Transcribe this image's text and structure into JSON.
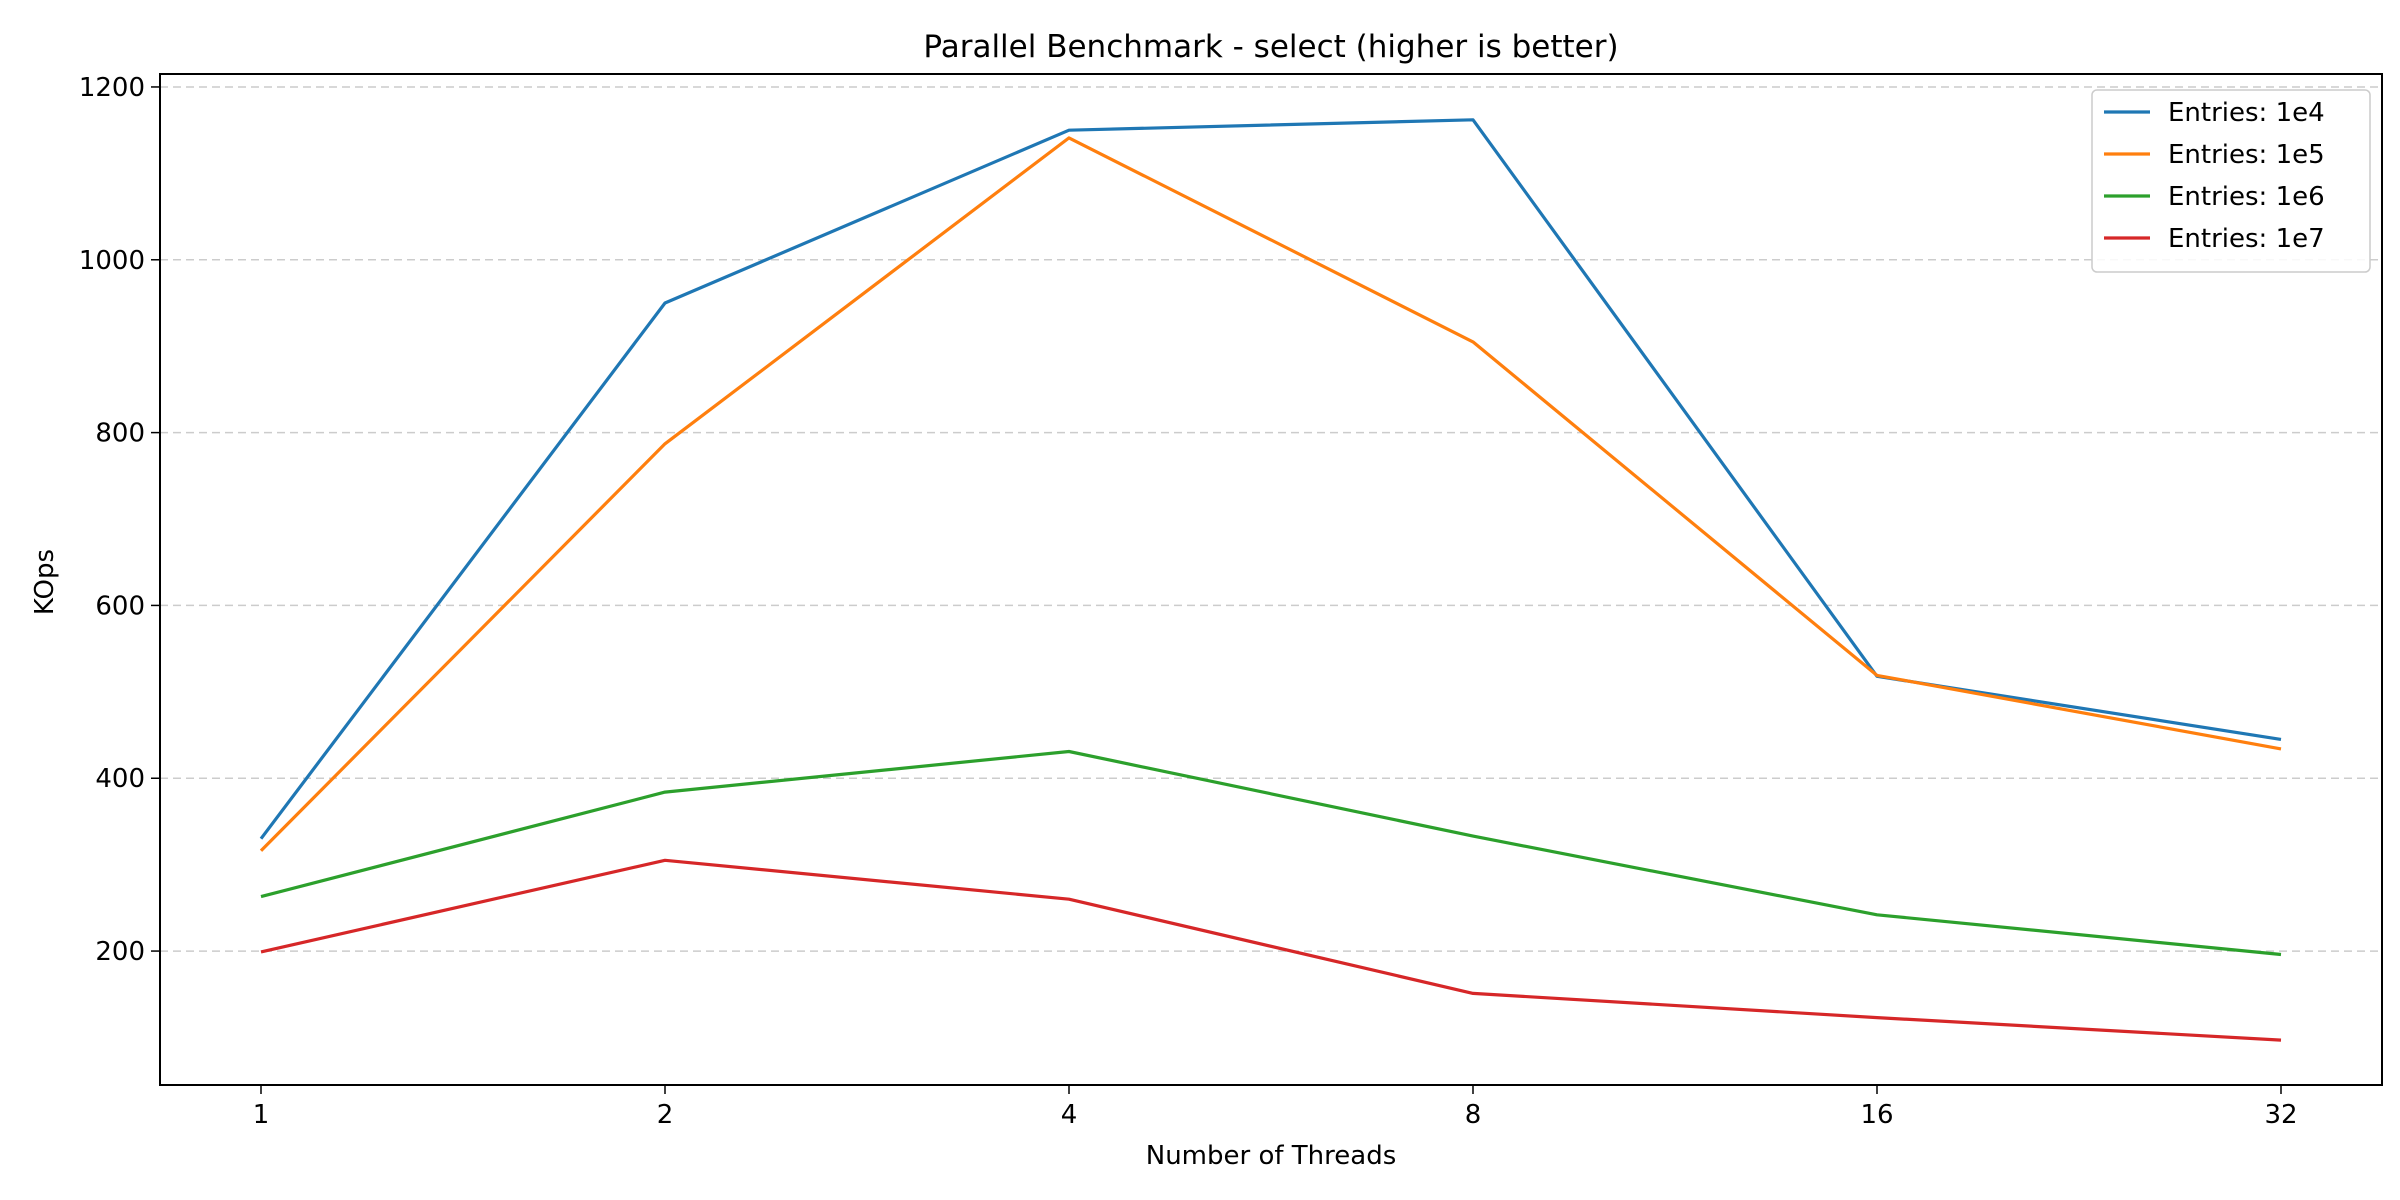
{
  "chart_data": {
    "type": "line",
    "title": "Parallel Benchmark - select (higher is better)",
    "xlabel": "Number of Threads",
    "ylabel": "KOps",
    "x": [
      "1",
      "2",
      "4",
      "8",
      "16",
      "32"
    ],
    "x_scale": "log2",
    "ylim": [
      45,
      1215
    ],
    "yticks": [
      200,
      400,
      600,
      800,
      1000,
      1200
    ],
    "grid": "y-dashed",
    "legend": "top-right",
    "series": [
      {
        "name": "Entries: 1e4",
        "color": "#1f77b4",
        "values": [
          330,
          950,
          1150,
          1162,
          518,
          445
        ]
      },
      {
        "name": "Entries: 1e5",
        "color": "#ff7f0e",
        "values": [
          316,
          787,
          1141,
          905,
          519,
          434
        ]
      },
      {
        "name": "Entries: 1e6",
        "color": "#2ca02c",
        "values": [
          263,
          384,
          431,
          333,
          242,
          196
        ]
      },
      {
        "name": "Entries: 1e7",
        "color": "#d62728",
        "values": [
          199,
          305,
          260,
          151,
          123,
          97
        ]
      }
    ]
  }
}
